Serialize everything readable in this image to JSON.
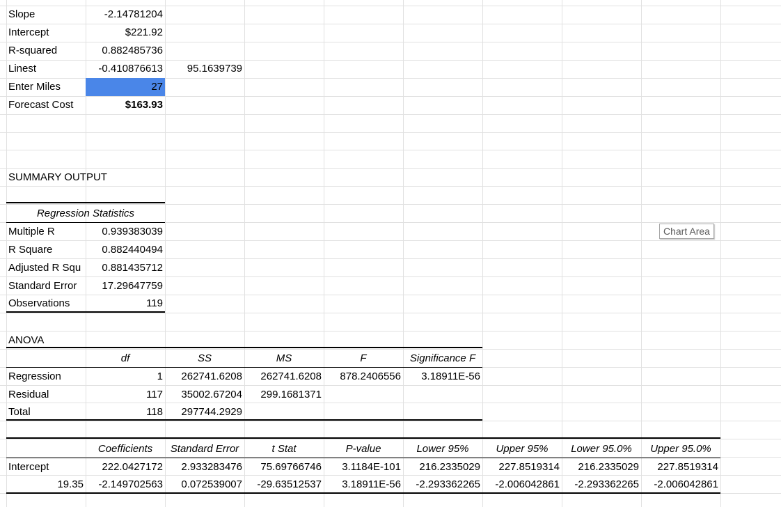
{
  "forecast": {
    "slope_label": "Slope",
    "slope_value": "-2.14781204",
    "intercept_label": "Intercept",
    "intercept_value": "$221.92",
    "rsquared_label": "R-squared",
    "rsquared_value": "0.882485736",
    "linest_label": "Linest",
    "linest_value_1": "-0.410876613",
    "linest_value_2": "95.1639739",
    "enter_miles_label": "Enter Miles",
    "enter_miles_value": "27",
    "forecast_cost_label": "Forecast Cost",
    "forecast_cost_value": "$163.93"
  },
  "summary": {
    "title": "SUMMARY OUTPUT",
    "regression_statistics_header": "Regression Statistics",
    "stats": [
      {
        "label": "Multiple R",
        "value": "0.939383039"
      },
      {
        "label": "R Square",
        "value": "0.882440494"
      },
      {
        "label": "Adjusted R Squ",
        "value": "0.881435712"
      },
      {
        "label": "Standard Error",
        "value": "17.29647759"
      },
      {
        "label": "Observations",
        "value": "119"
      }
    ]
  },
  "anova": {
    "title": "ANOVA",
    "headers": [
      "df",
      "SS",
      "MS",
      "F",
      "Significance F"
    ],
    "rows": [
      {
        "label": "Regression",
        "df": "1",
        "ss": "262741.6208",
        "ms": "262741.6208",
        "f": "878.2406556",
        "sig": "3.18911E-56"
      },
      {
        "label": "Residual",
        "df": "117",
        "ss": "35002.67204",
        "ms": "299.1681371",
        "f": "",
        "sig": ""
      },
      {
        "label": "Total",
        "df": "118",
        "ss": "297744.2929",
        "ms": "",
        "f": "",
        "sig": ""
      }
    ]
  },
  "coefficients": {
    "headers": [
      "Coefficients",
      "Standard Error",
      "t Stat",
      "P-value",
      "Lower 95%",
      "Upper 95%",
      "Lower 95.0%",
      "Upper 95.0%"
    ],
    "rows": [
      {
        "label": "Intercept",
        "values": [
          "222.0427172",
          "2.933283476",
          "75.69766746",
          "3.1184E-101",
          "216.2335029",
          "227.8519314",
          "216.2335029",
          "227.8519314"
        ]
      },
      {
        "label": "19.35",
        "values": [
          "-2.149702563",
          "0.072539007",
          "-29.63512537",
          "3.18911E-56",
          "-2.293362265",
          "-2.006042861",
          "-2.293362265",
          "-2.006042861"
        ]
      }
    ]
  },
  "chart_tooltip": "Chart Area"
}
